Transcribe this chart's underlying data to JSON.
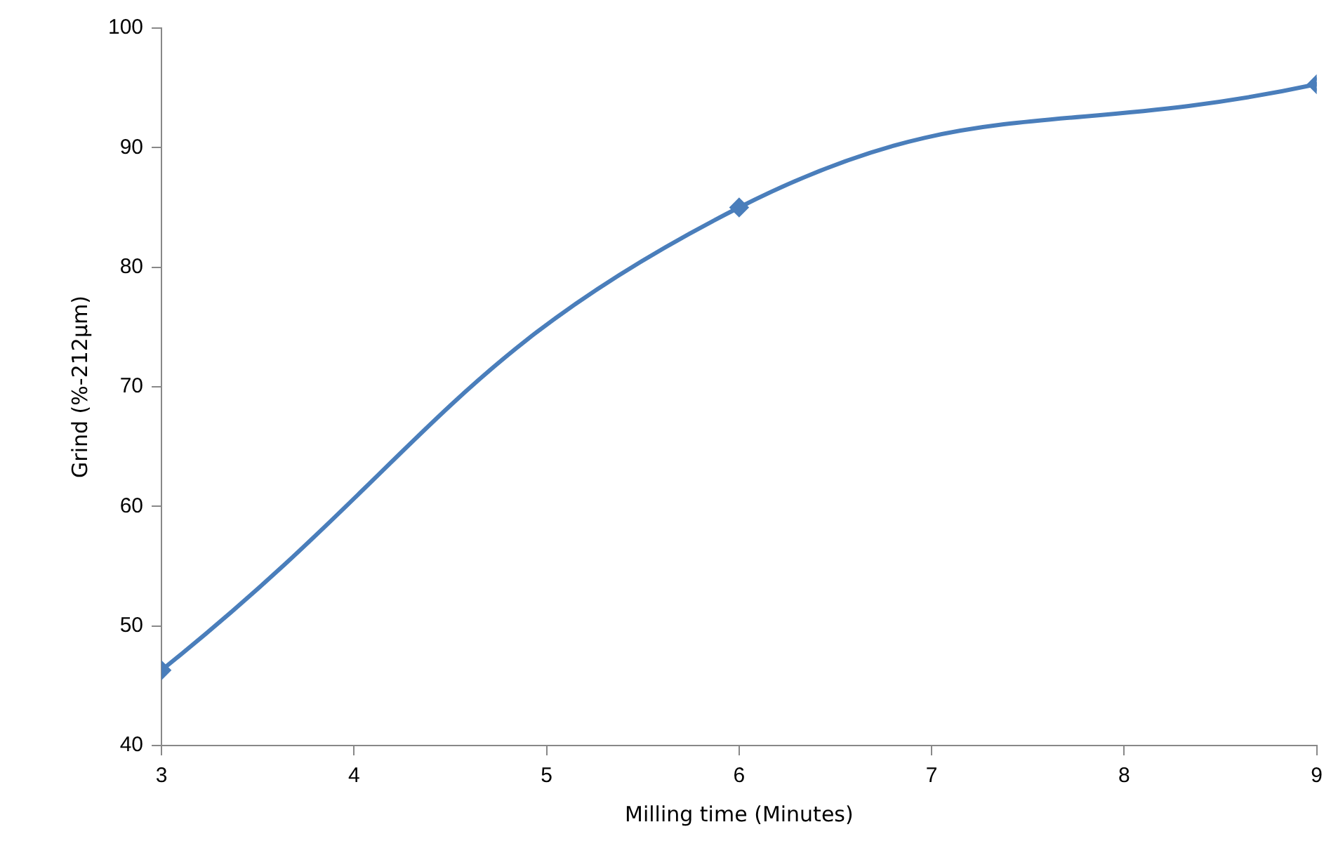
{
  "chart_data": {
    "type": "line",
    "xlabel": "Milling time (Minutes)",
    "ylabel": "Grind (%-212µm)",
    "x": [
      3,
      6,
      9
    ],
    "series": [
      {
        "color": "#4a7ebb",
        "values": [
          46.3,
          85,
          95.3
        ]
      }
    ],
    "xlim": [
      3,
      9
    ],
    "xticks": [
      3,
      4,
      5,
      6,
      7,
      8,
      9
    ],
    "ylim": [
      40,
      100
    ],
    "yticks": [
      40,
      50,
      60,
      70,
      80,
      90,
      100
    ],
    "marker": "diamond",
    "line_style": "solid"
  }
}
